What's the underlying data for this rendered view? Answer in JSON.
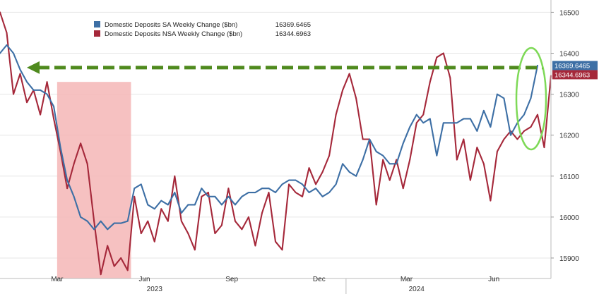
{
  "chart_data": {
    "type": "line",
    "ylim": [
      15850,
      16530
    ],
    "y_ticks": [
      15900,
      16000,
      16100,
      16200,
      16300,
      16400,
      16500
    ],
    "y_tick_labels": [
      "15900",
      "16000",
      "16100",
      "16200",
      "16300",
      "16400",
      "16500"
    ],
    "month_labels": [
      {
        "label": "Mar",
        "week": 8.5
      },
      {
        "label": "Jun",
        "week": 21.5
      },
      {
        "label": "Sep",
        "week": 34.5
      },
      {
        "label": "Dec",
        "week": 47.5
      },
      {
        "label": "Mar",
        "week": 60.5
      },
      {
        "label": "Jun",
        "week": 73.5
      }
    ],
    "year_labels": [
      {
        "label": "2023",
        "week": 23
      },
      {
        "label": "2024",
        "week": 62
      }
    ],
    "year_divider_week": 51.5,
    "x_range": [
      0,
      82
    ],
    "legend": {
      "entries": [
        {
          "name": "Domestic Deposits SA Weekly Change ($bn)",
          "value": "16369.6465",
          "color": "#3d6fa5"
        },
        {
          "name": "Domestic Deposits NSA Weekly Change ($bn)",
          "value": "16344.6963",
          "color": "#a5283a"
        }
      ]
    },
    "series": [
      {
        "name": "Domestic Deposits SA Weekly Change ($bn)",
        "color": "#3d6fa5",
        "last_value_label": "16369.6465",
        "values": [
          16400,
          16420,
          16400,
          16360,
          16330,
          16310,
          16310,
          16300,
          16270,
          16170,
          16090,
          16050,
          16000,
          15990,
          15970,
          15990,
          15970,
          15985,
          15985,
          15990,
          16070,
          16080,
          16030,
          16020,
          16040,
          16030,
          16060,
          16010,
          16030,
          16030,
          16070,
          16050,
          16050,
          16030,
          16050,
          16030,
          16050,
          16060,
          16060,
          16070,
          16070,
          16060,
          16080,
          16090,
          16090,
          16080,
          16060,
          16070,
          16050,
          16060,
          16080,
          16130,
          16110,
          16100,
          16140,
          16190,
          16160,
          16150,
          16130,
          16130,
          16180,
          16220,
          16250,
          16230,
          16240,
          16150,
          16230,
          16230,
          16230,
          16240,
          16240,
          16210,
          16260,
          16220,
          16300,
          16290,
          16200,
          16230,
          16250,
          16290,
          16370
        ]
      },
      {
        "name": "Domestic Deposits NSA Weekly Change ($bn)",
        "color": "#a5283a",
        "last_value_label": "16344.6963",
        "values": [
          16500,
          16450,
          16300,
          16350,
          16280,
          16310,
          16250,
          16330,
          16240,
          16160,
          16070,
          16130,
          16180,
          16130,
          15990,
          15860,
          15930,
          15880,
          15900,
          15870,
          16050,
          15960,
          15990,
          15940,
          16020,
          15990,
          16100,
          15990,
          15960,
          15920,
          16050,
          16060,
          15960,
          15980,
          16070,
          15990,
          15970,
          16000,
          15930,
          16010,
          16060,
          15940,
          15920,
          16080,
          16060,
          16050,
          16120,
          16080,
          16110,
          16150,
          16250,
          16310,
          16350,
          16290,
          16190,
          16190,
          16030,
          16140,
          16090,
          16140,
          16070,
          16140,
          16230,
          16250,
          16330,
          16390,
          16400,
          16340,
          16140,
          16190,
          16090,
          16170,
          16130,
          16040,
          16160,
          16190,
          16210,
          16190,
          16210,
          16220,
          16250,
          16170,
          16345
        ]
      }
    ]
  },
  "annotations": {
    "arrow_level": 16365,
    "arrow_color": "#4f8a1e",
    "shaded_region": {
      "start_week": 8.5,
      "end_week": 19.5,
      "color": "#f4b6b6"
    },
    "highlight_ellipse": {
      "color": "#7ed957"
    }
  }
}
